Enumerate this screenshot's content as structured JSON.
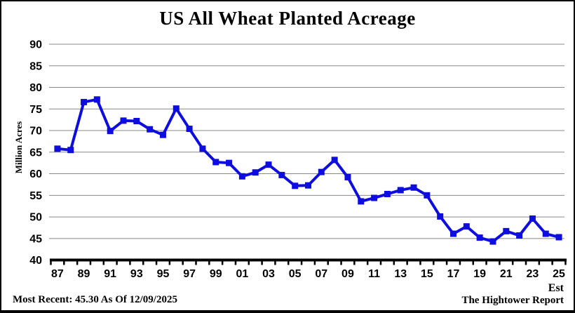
{
  "title": "US All Wheat Planted Acreage",
  "y_axis_title": "Million Acres",
  "est_label": "Est",
  "footer": {
    "most_recent": "Most Recent: 45.30 As Of 12/09/2025",
    "source": "The Hightower Report"
  },
  "colors": {
    "line": "#0d0de0",
    "grid": "#888888",
    "axis": "#000000",
    "text": "#000000",
    "background": "#ffffff"
  },
  "chart_data": {
    "type": "line",
    "title": "US All Wheat Planted Acreage",
    "xlabel": "",
    "ylabel": "Million Acres",
    "x": [
      1987,
      1988,
      1989,
      1990,
      1991,
      1992,
      1993,
      1994,
      1995,
      1996,
      1997,
      1998,
      1999,
      2000,
      2001,
      2002,
      2003,
      2004,
      2005,
      2006,
      2007,
      2008,
      2009,
      2010,
      2011,
      2012,
      2013,
      2014,
      2015,
      2016,
      2017,
      2018,
      2019,
      2020,
      2021,
      2022,
      2023,
      2024,
      2025
    ],
    "values": [
      65.8,
      65.5,
      76.6,
      77.2,
      69.9,
      72.3,
      72.2,
      70.3,
      69.0,
      75.1,
      70.4,
      65.8,
      62.7,
      62.5,
      59.4,
      60.3,
      62.1,
      59.7,
      57.2,
      57.3,
      60.4,
      63.2,
      59.2,
      53.6,
      54.4,
      55.3,
      56.2,
      56.8,
      55.0,
      50.1,
      46.1,
      47.8,
      45.2,
      44.3,
      46.7,
      45.7,
      49.6,
      46.1,
      45.3
    ],
    "x_tick_labels": [
      "87",
      "89",
      "91",
      "93",
      "95",
      "97",
      "99",
      "01",
      "03",
      "05",
      "07",
      "09",
      "11",
      "13",
      "15",
      "17",
      "19",
      "21",
      "23",
      "25"
    ],
    "y_ticks": [
      40,
      45,
      50,
      55,
      60,
      65,
      70,
      75,
      80,
      85,
      90
    ],
    "ylim": [
      40,
      92.5
    ],
    "grid": "horizontal",
    "legend": "none",
    "marker": "square",
    "last_point_annotation": "Est",
    "most_recent_value": 45.3,
    "most_recent_date": "12/09/2025",
    "source": "The Hightower Report"
  }
}
